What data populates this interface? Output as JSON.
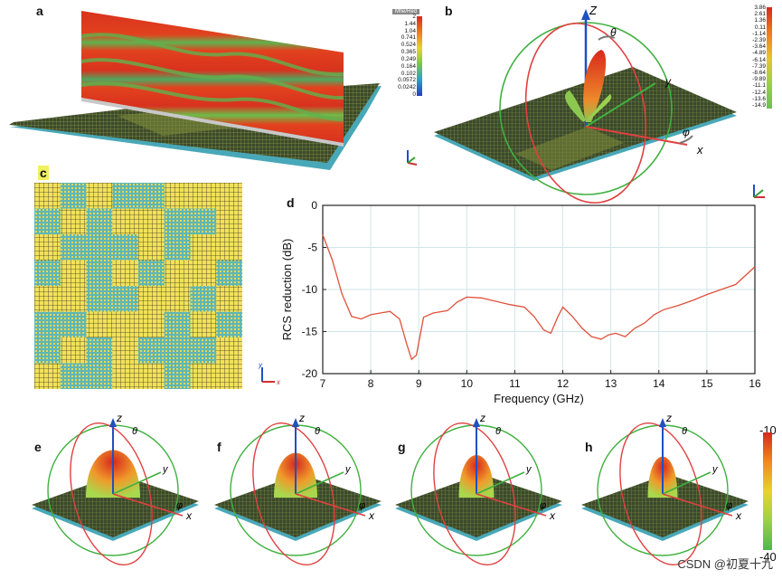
{
  "panels": {
    "a": "a",
    "b": "b",
    "c": "c",
    "d": "d",
    "e": "e",
    "f": "f",
    "g": "g",
    "h": "h"
  },
  "colorbar_a": {
    "title": "Mfie/Red",
    "ticks": [
      "2",
      "1.44",
      "1.04",
      "0.741",
      "0.524",
      "0.365",
      "0.249",
      "0.164",
      "0.102",
      "0.0572",
      "0.0242",
      "0"
    ]
  },
  "colorbar_b": {
    "ticks": [
      "3.86",
      "2.61",
      "1.36",
      "0.11",
      "-1.14",
      "-2.39",
      "-3.64",
      "-4.89",
      "-6.14",
      "-7.39",
      "-8.64",
      "-9.89",
      "-11.1",
      "-12.4",
      "-13.6",
      "-14.9"
    ]
  },
  "colorbar_bottom": {
    "top": "-10",
    "bottom": "-40"
  },
  "axes_labels": {
    "z_upper": "Z",
    "z_lower": "z",
    "x": "x",
    "y": "y",
    "theta": "θ",
    "phi": "φ"
  },
  "chart_data": {
    "type": "line",
    "xlabel": "Frequency (GHz)",
    "ylabel": "RCS reduction (dB)",
    "xlim": [
      7,
      16
    ],
    "ylim": [
      -20,
      0
    ],
    "xticks": [
      7,
      8,
      9,
      10,
      11,
      12,
      13,
      14,
      15,
      16
    ],
    "yticks": [
      0,
      -5,
      -10,
      -15,
      -20
    ],
    "grid": true,
    "series": [
      {
        "color": "#e0503a",
        "x": [
          7.0,
          7.2,
          7.4,
          7.6,
          7.8,
          8.0,
          8.2,
          8.4,
          8.6,
          8.75,
          8.85,
          8.95,
          9.1,
          9.3,
          9.6,
          9.8,
          10.0,
          10.3,
          10.6,
          10.9,
          11.2,
          11.4,
          11.6,
          11.75,
          11.9,
          12.0,
          12.2,
          12.4,
          12.6,
          12.8,
          12.95,
          13.1,
          13.3,
          13.5,
          13.7,
          13.9,
          14.1,
          14.4,
          14.7,
          15.0,
          15.3,
          15.6,
          16.0
        ],
        "y": [
          -3.5,
          -6.5,
          -10.5,
          -13.2,
          -13.5,
          -13.0,
          -12.8,
          -12.6,
          -13.5,
          -16.5,
          -18.3,
          -17.8,
          -13.3,
          -12.8,
          -12.5,
          -11.5,
          -10.9,
          -11.0,
          -11.4,
          -11.8,
          -12.1,
          -13.2,
          -14.8,
          -15.2,
          -13.2,
          -12.1,
          -13.2,
          -14.6,
          -15.6,
          -15.9,
          -15.4,
          -15.2,
          -15.6,
          -14.6,
          -14.0,
          -13.0,
          -12.4,
          -11.9,
          -11.3,
          -10.6,
          -10.0,
          -9.4,
          -7.3
        ]
      }
    ]
  },
  "watermark": "CSDN @初夏十九"
}
